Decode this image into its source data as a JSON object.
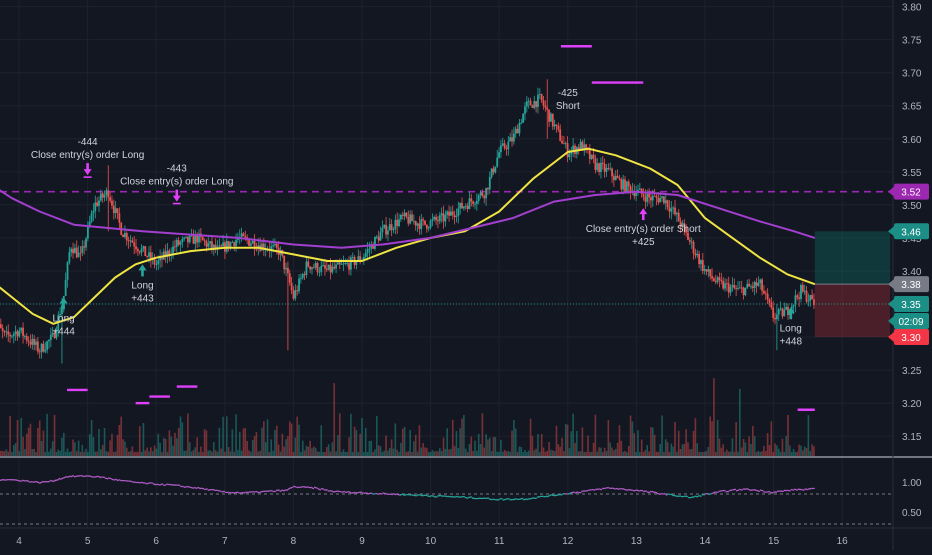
{
  "chart_data": {
    "type": "candlestick",
    "panes": [
      "price",
      "oscillator"
    ],
    "x_ticks": [
      "4",
      "5",
      "6",
      "7",
      "8",
      "9",
      "10",
      "11",
      "12",
      "13",
      "14",
      "15",
      "16"
    ],
    "y_ticks": [
      "3.80",
      "3.75",
      "3.70",
      "3.65",
      "3.60",
      "3.55",
      "3.50",
      "3.45",
      "3.40",
      "3.35",
      "3.30",
      "3.25",
      "3.20",
      "3.15"
    ],
    "y_range": [
      3.12,
      3.81
    ],
    "oscillator_ticks": [
      "1.00",
      "0.50"
    ],
    "oscillator_range": [
      0.25,
      1.4
    ],
    "price_badges": [
      {
        "label": "3.52",
        "color": "#9c27b0"
      },
      {
        "label": "3.46",
        "color": "#1b8f86"
      },
      {
        "label": "3.38",
        "color": "#787b86"
      },
      {
        "label": "3.35",
        "color": "#1b8f86"
      },
      {
        "label": "02:09",
        "color": "#1b8f86"
      },
      {
        "label": "3.30",
        "color": "#f23645"
      }
    ],
    "horizontal_line": {
      "value": 3.52,
      "style": "dashed",
      "color": "#9c27b0"
    },
    "last_price": 3.35,
    "position_box": {
      "x_start": 15.6,
      "x_end": 16.7,
      "entry": 3.38,
      "target": 3.46,
      "stop": 3.3
    },
    "price_path": [
      [
        3.6,
        3.33
      ],
      [
        3.8,
        3.3
      ],
      [
        4.0,
        3.31
      ],
      [
        4.3,
        3.28
      ],
      [
        4.5,
        3.3
      ],
      [
        4.65,
        3.36
      ],
      [
        4.75,
        3.44
      ],
      [
        4.9,
        3.42
      ],
      [
        5.1,
        3.5
      ],
      [
        5.3,
        3.52
      ],
      [
        5.5,
        3.46
      ],
      [
        5.8,
        3.43
      ],
      [
        6.0,
        3.41
      ],
      [
        6.3,
        3.44
      ],
      [
        6.6,
        3.45
      ],
      [
        6.9,
        3.43
      ],
      [
        7.2,
        3.45
      ],
      [
        7.5,
        3.44
      ],
      [
        7.8,
        3.43
      ],
      [
        7.95,
        3.38
      ],
      [
        8.0,
        3.36
      ],
      [
        8.2,
        3.41
      ],
      [
        8.5,
        3.4
      ],
      [
        8.8,
        3.41
      ],
      [
        9.0,
        3.42
      ],
      [
        9.3,
        3.46
      ],
      [
        9.6,
        3.48
      ],
      [
        9.9,
        3.47
      ],
      [
        10.2,
        3.48
      ],
      [
        10.5,
        3.5
      ],
      [
        10.8,
        3.52
      ],
      [
        11.0,
        3.58
      ],
      [
        11.2,
        3.6
      ],
      [
        11.4,
        3.65
      ],
      [
        11.6,
        3.66
      ],
      [
        11.8,
        3.62
      ],
      [
        12.0,
        3.58
      ],
      [
        12.2,
        3.59
      ],
      [
        12.4,
        3.56
      ],
      [
        12.6,
        3.55
      ],
      [
        12.8,
        3.53
      ],
      [
        13.0,
        3.52
      ],
      [
        13.2,
        3.51
      ],
      [
        13.4,
        3.51
      ],
      [
        13.6,
        3.48
      ],
      [
        13.8,
        3.44
      ],
      [
        14.0,
        3.4
      ],
      [
        14.2,
        3.38
      ],
      [
        14.5,
        3.37
      ],
      [
        14.8,
        3.38
      ],
      [
        15.0,
        3.33
      ],
      [
        15.2,
        3.34
      ],
      [
        15.4,
        3.37
      ],
      [
        15.6,
        3.35
      ]
    ],
    "series": [
      {
        "name": "",
        "color": "#f0e442",
        "points": [
          [
            3.6,
            3.385
          ],
          [
            3.9,
            3.36
          ],
          [
            4.2,
            3.335
          ],
          [
            4.5,
            3.32
          ],
          [
            4.8,
            3.33
          ],
          [
            5.1,
            3.36
          ],
          [
            5.4,
            3.39
          ],
          [
            5.7,
            3.41
          ],
          [
            6.0,
            3.42
          ],
          [
            6.5,
            3.43
          ],
          [
            7.0,
            3.435
          ],
          [
            7.5,
            3.435
          ],
          [
            8.0,
            3.425
          ],
          [
            8.5,
            3.415
          ],
          [
            9.0,
            3.415
          ],
          [
            9.5,
            3.435
          ],
          [
            10.0,
            3.45
          ],
          [
            10.5,
            3.46
          ],
          [
            11.0,
            3.49
          ],
          [
            11.5,
            3.54
          ],
          [
            12.0,
            3.58
          ],
          [
            12.3,
            3.585
          ],
          [
            12.7,
            3.575
          ],
          [
            13.2,
            3.555
          ],
          [
            13.6,
            3.53
          ],
          [
            14.0,
            3.48
          ],
          [
            14.4,
            3.45
          ],
          [
            14.8,
            3.42
          ],
          [
            15.2,
            3.395
          ],
          [
            15.6,
            3.38
          ]
        ]
      },
      {
        "name": "",
        "color": "#a23fcf",
        "points": [
          [
            3.6,
            3.53
          ],
          [
            3.9,
            3.51
          ],
          [
            4.3,
            3.49
          ],
          [
            4.8,
            3.47
          ],
          [
            5.3,
            3.465
          ],
          [
            5.8,
            3.46
          ],
          [
            6.5,
            3.455
          ],
          [
            7.2,
            3.45
          ],
          [
            8.0,
            3.44
          ],
          [
            8.7,
            3.435
          ],
          [
            9.3,
            3.44
          ],
          [
            10.0,
            3.45
          ],
          [
            10.6,
            3.465
          ],
          [
            11.2,
            3.48
          ],
          [
            11.8,
            3.505
          ],
          [
            12.4,
            3.515
          ],
          [
            13.0,
            3.52
          ],
          [
            13.6,
            3.515
          ],
          [
            14.2,
            3.495
          ],
          [
            14.8,
            3.475
          ],
          [
            15.3,
            3.46
          ],
          [
            15.6,
            3.45
          ]
        ]
      }
    ],
    "entry_lines": [
      {
        "x_start": 4.7,
        "x_end": 5.0,
        "y": 3.22
      },
      {
        "x_start": 5.7,
        "x_end": 5.9,
        "y": 3.2
      },
      {
        "x_start": 5.9,
        "x_end": 6.2,
        "y": 3.21
      },
      {
        "x_start": 6.3,
        "x_end": 6.6,
        "y": 3.225
      },
      {
        "x_start": 11.9,
        "x_end": 12.35,
        "y": 3.74
      },
      {
        "x_start": 12.35,
        "x_end": 13.1,
        "y": 3.685
      },
      {
        "x_start": 15.35,
        "x_end": 15.6,
        "y": 3.19
      }
    ],
    "trade_markers": [
      {
        "x": 4.65,
        "price": 3.36,
        "direction": "up",
        "lines": [
          "Long",
          "+444"
        ]
      },
      {
        "x": 5.0,
        "price": 3.545,
        "direction": "down",
        "lines": [
          "-444",
          "Close entry(s) order Long"
        ]
      },
      {
        "x": 5.8,
        "price": 3.41,
        "direction": "up",
        "lines": [
          "Long",
          "+443"
        ]
      },
      {
        "x": 6.3,
        "price": 3.505,
        "direction": "down",
        "lines": [
          "-443",
          "Close entry(s) order Long"
        ]
      },
      {
        "x": 12.0,
        "price": 3.665,
        "direction": "none",
        "lines": [
          "-425",
          "Short"
        ]
      },
      {
        "x": 13.1,
        "price": 3.495,
        "direction": "up",
        "lines": [
          "Close entry(s) order Short",
          "+425"
        ]
      },
      {
        "x": 15.25,
        "price": 3.345,
        "direction": "up",
        "lines": [
          "Long",
          "+448"
        ]
      }
    ],
    "oscillator_series": {
      "color_high": "#b05cc6",
      "color_low": "#26a69a",
      "points": [
        [
          3.6,
          1.05
        ],
        [
          4.0,
          1.03
        ],
        [
          4.3,
          0.99
        ],
        [
          4.5,
          1.02
        ],
        [
          4.7,
          1.09
        ],
        [
          5.0,
          1.1
        ],
        [
          5.2,
          1.08
        ],
        [
          5.5,
          1.02
        ],
        [
          5.8,
          0.98
        ],
        [
          6.2,
          0.95
        ],
        [
          6.6,
          0.9
        ],
        [
          7.0,
          0.83
        ],
        [
          7.3,
          0.82
        ],
        [
          7.6,
          0.84
        ],
        [
          7.9,
          0.86
        ],
        [
          8.0,
          0.92
        ],
        [
          8.3,
          0.9
        ],
        [
          8.6,
          0.84
        ],
        [
          9.0,
          0.82
        ],
        [
          9.4,
          0.8
        ],
        [
          9.8,
          0.78
        ],
        [
          10.2,
          0.76
        ],
        [
          10.6,
          0.74
        ],
        [
          11.0,
          0.71
        ],
        [
          11.4,
          0.72
        ],
        [
          11.8,
          0.78
        ],
        [
          12.2,
          0.84
        ],
        [
          12.6,
          0.9
        ],
        [
          13.0,
          0.86
        ],
        [
          13.4,
          0.8
        ],
        [
          13.8,
          0.74
        ],
        [
          14.0,
          0.79
        ],
        [
          14.3,
          0.85
        ],
        [
          14.6,
          0.88
        ],
        [
          15.0,
          0.83
        ],
        [
          15.3,
          0.87
        ],
        [
          15.6,
          0.88
        ]
      ]
    }
  }
}
